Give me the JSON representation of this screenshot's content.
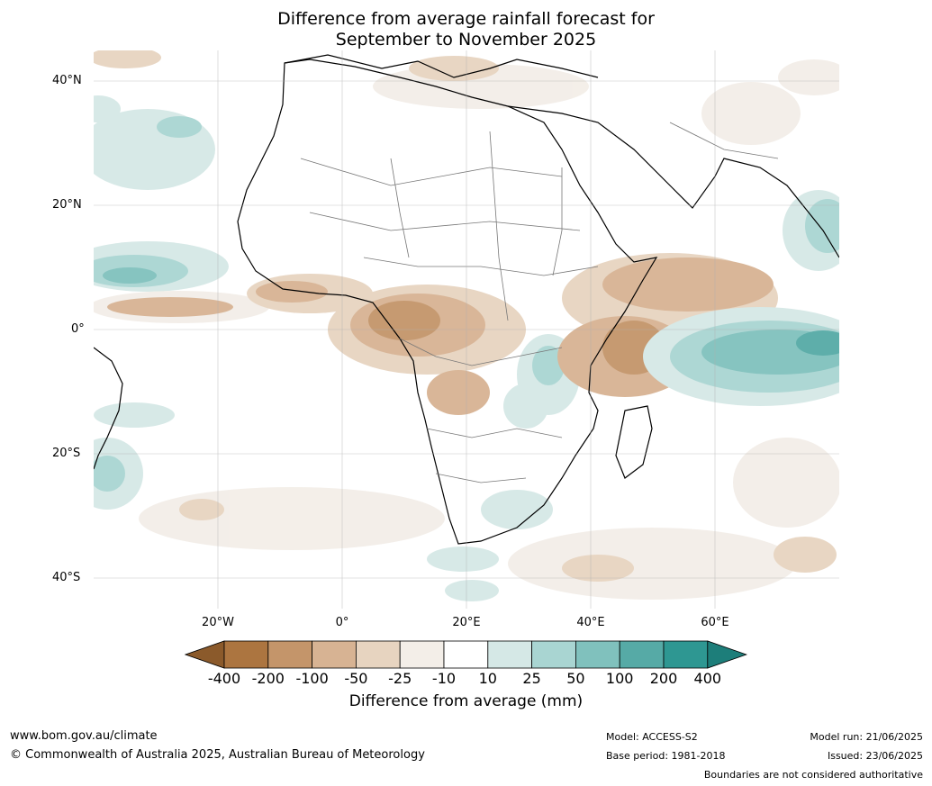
{
  "title_line1": "Difference from average rainfall forecast for",
  "title_line2": "September to November 2025",
  "lat_labels": [
    "40°N",
    "20°N",
    "0°",
    "20°S",
    "40°S"
  ],
  "lon_labels": [
    "20°W",
    "0°",
    "20°E",
    "40°E",
    "60°E"
  ],
  "colorbar": {
    "ticks": [
      "-400",
      "-200",
      "-100",
      "-50",
      "-25",
      "-10",
      "10",
      "25",
      "50",
      "100",
      "200",
      "400"
    ],
    "colors": [
      "#8b5a2b",
      "#ac7540",
      "#c4956a",
      "#d7b393",
      "#e7d4c0",
      "#f3eee8",
      "#ffffff",
      "#d5e8e6",
      "#a9d5d2",
      "#80c1bd",
      "#56aaa6",
      "#2e9792",
      "#1d7e7a"
    ],
    "label": "Difference from average (mm)"
  },
  "footer": {
    "website": "www.bom.gov.au/climate",
    "copyright": "© Commonwealth of Australia 2025, Australian Bureau of Meteorology",
    "model": "Model: ACCESS-S2",
    "base_period": "Base period: 1981-2018",
    "model_run": "Model run: 21/06/2025",
    "issued": "Issued: 23/06/2025",
    "disclaimer": "Boundaries are not considered authoritative"
  }
}
